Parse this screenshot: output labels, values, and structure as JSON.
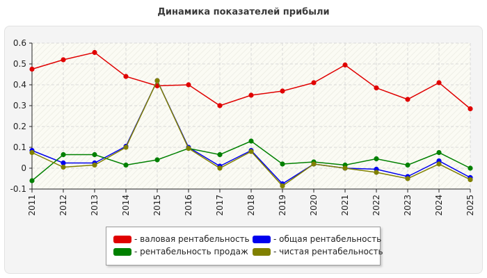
{
  "chart_data": {
    "type": "line",
    "title": "Динамика показателей прибыли",
    "xlabel": "",
    "ylabel": "",
    "x": [
      "2011",
      "2012",
      "2013",
      "2014",
      "2015",
      "2016",
      "2017",
      "2018",
      "2019",
      "2020",
      "2021",
      "2022",
      "2023",
      "2024",
      "2025"
    ],
    "ylim": [
      -0.1,
      0.6
    ],
    "yticks": [
      "-0.1",
      "0",
      "0.1",
      "0.2",
      "0.3",
      "0.4",
      "0.5",
      "0.6"
    ],
    "grid": true,
    "legend_position": "bottom",
    "series": [
      {
        "name": "- валовая рентабельность",
        "color": "#e00000",
        "values": [
          0.475,
          0.52,
          0.555,
          0.44,
          0.395,
          0.4,
          0.3,
          0.35,
          0.37,
          0.41,
          0.495,
          0.385,
          0.33,
          0.41,
          0.285
        ]
      },
      {
        "name": "- общая рентабельность",
        "color": "#0000ee",
        "values": [
          0.085,
          0.025,
          0.025,
          0.105,
          0.42,
          0.1,
          0.01,
          0.085,
          -0.075,
          0.02,
          0.0,
          -0.005,
          -0.04,
          0.035,
          -0.045
        ]
      },
      {
        "name": "- рентабельность продаж",
        "color": "#008000",
        "values": [
          -0.06,
          0.065,
          0.065,
          0.015,
          0.04,
          0.095,
          0.065,
          0.13,
          0.02,
          0.03,
          0.015,
          0.045,
          0.015,
          0.075,
          0.0
        ]
      },
      {
        "name": "- чистая рентабельность",
        "color": "#808000",
        "values": [
          0.075,
          0.005,
          0.015,
          0.1,
          0.42,
          0.095,
          0.0,
          0.08,
          -0.085,
          0.02,
          0.0,
          -0.02,
          -0.05,
          0.02,
          -0.055
        ]
      }
    ]
  }
}
